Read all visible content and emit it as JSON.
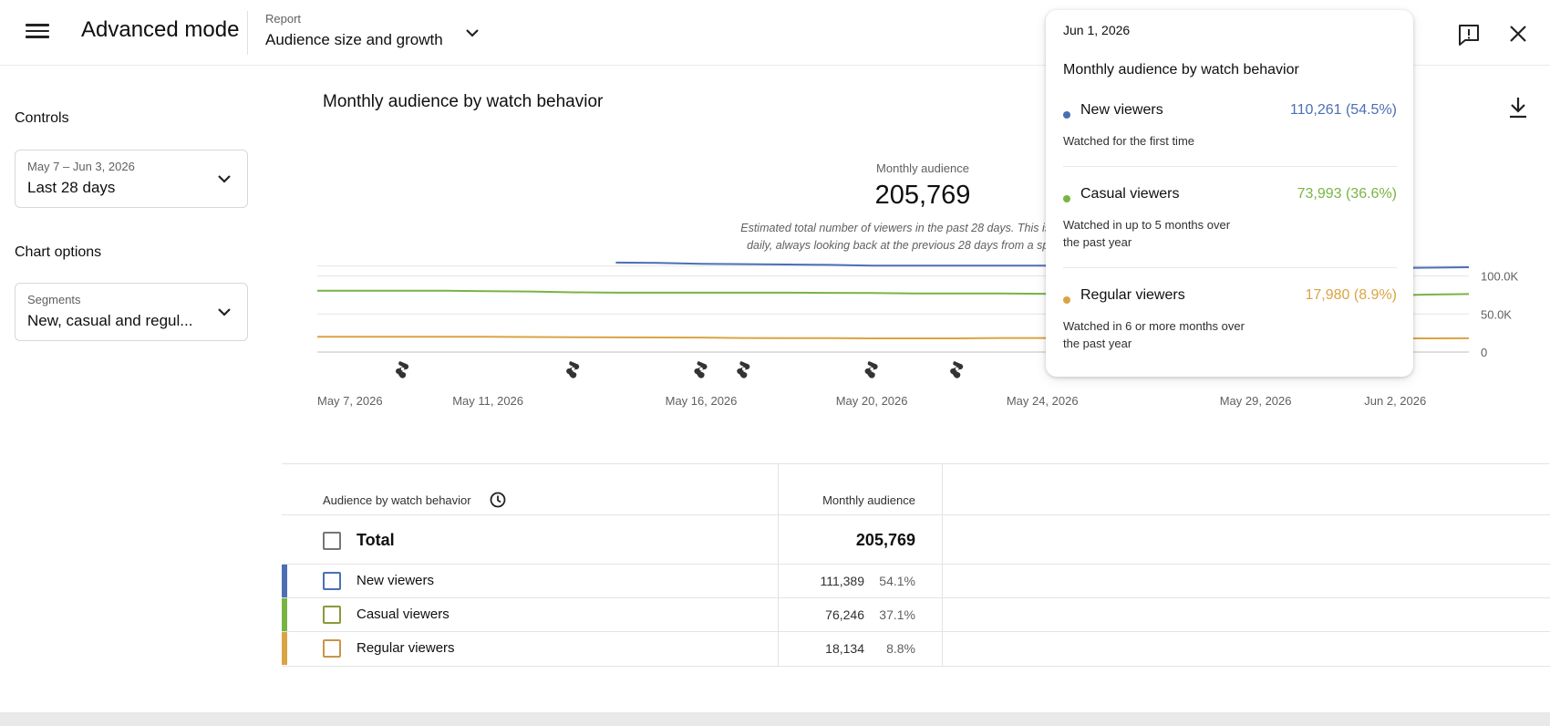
{
  "header": {
    "title": "Advanced mode",
    "report_label": "Report",
    "report_value": "Audience size and growth"
  },
  "sidebar": {
    "controls_heading": "Controls",
    "date_range": {
      "label": "May 7 – Jun 3, 2026",
      "value": "Last 28 days"
    },
    "chart_options_heading": "Chart options",
    "segments": {
      "label": "Segments",
      "value": "New, casual and regul..."
    }
  },
  "chart": {
    "title": "Monthly audience by watch behavior",
    "metric_label": "Monthly audience",
    "metric_value": "205,769",
    "metric_note": "Estimated total number of viewers in the past 28 days. This is calculated daily, always looking back at the previous 28 days from a specific day."
  },
  "chart_data": {
    "type": "line",
    "x": [
      "May 7, 2026",
      "May 8, 2026",
      "May 9, 2026",
      "May 10, 2026",
      "May 11, 2026",
      "May 12, 2026",
      "May 13, 2026",
      "May 14, 2026",
      "May 15, 2026",
      "May 16, 2026",
      "May 17, 2026",
      "May 18, 2026",
      "May 19, 2026",
      "May 20, 2026",
      "May 21, 2026",
      "May 22, 2026",
      "May 23, 2026",
      "May 24, 2026",
      "May 25, 2026",
      "May 26, 2026",
      "May 27, 2026",
      "May 28, 2026",
      "May 29, 2026",
      "May 30, 2026",
      "May 31, 2026",
      "Jun 1, 2026",
      "Jun 2, 2026",
      "Jun 3, 2026"
    ],
    "x_tick_labels": [
      "May 7, 2026",
      "May 11, 2026",
      "May 16, 2026",
      "May 20, 2026",
      "May 24, 2026",
      "May 29, 2026",
      "Jun 2, 2026"
    ],
    "x_tick_index": [
      0,
      4,
      9,
      13,
      17,
      22,
      26
    ],
    "y_tick_labels": [
      "0",
      "50.0K",
      "100.0K"
    ],
    "y_tick_values": [
      0,
      50000,
      100000
    ],
    "ylim": [
      0,
      115000
    ],
    "series": [
      {
        "name": "New viewers",
        "color": "#4b6fb5",
        "values": [
          null,
          null,
          null,
          null,
          null,
          null,
          null,
          117500,
          117000,
          116000,
          115500,
          115000,
          114500,
          113500,
          113500,
          113500,
          113500,
          113500,
          113000,
          112500,
          112000,
          111500,
          111000,
          110800,
          110500,
          110261,
          110800,
          111389
        ]
      },
      {
        "name": "Casual viewers",
        "color": "#79b443",
        "values": [
          80500,
          80500,
          80500,
          80500,
          80000,
          79500,
          78500,
          78000,
          78000,
          78000,
          78000,
          78000,
          77800,
          77500,
          77000,
          77000,
          77000,
          76500,
          76200,
          76000,
          75500,
          75000,
          74500,
          74300,
          74100,
          73993,
          75500,
          76246
        ]
      },
      {
        "name": "Regular viewers",
        "color": "#d9a443",
        "values": [
          20000,
          20000,
          20000,
          20000,
          20000,
          19800,
          19500,
          19300,
          19200,
          19000,
          18500,
          18300,
          18200,
          18000,
          18000,
          18000,
          18500,
          18500,
          18300,
          18200,
          18100,
          18000,
          18000,
          17990,
          17985,
          17980,
          18000,
          18134
        ]
      }
    ],
    "premiere_markers_index": [
      2,
      6,
      9,
      10,
      13,
      15
    ],
    "hover_index": 25
  },
  "tooltip": {
    "date": "Jun 1, 2026",
    "title": "Monthly audience by watch behavior",
    "rows": [
      {
        "name": "New viewers",
        "value": "110,261 (54.5%)",
        "desc": "Watched for the first time",
        "color": "#4b6fb5"
      },
      {
        "name": "Casual viewers",
        "value": "73,993 (36.6%)",
        "desc": "Watched in up to 5 months over the past year",
        "color": "#79b443"
      },
      {
        "name": "Regular viewers",
        "value": "17,980 (8.9%)",
        "desc": "Watched in 6 or more months over the past year",
        "color": "#d9a443"
      }
    ]
  },
  "table": {
    "col_behavior": "Audience by watch behavior",
    "col_audience": "Monthly audience",
    "total": {
      "name": "Total",
      "value": "205,769"
    },
    "rows": [
      {
        "name": "New viewers",
        "value": "111,389",
        "pct": "54.1%",
        "color": "#4b6fb5"
      },
      {
        "name": "Casual viewers",
        "value": "76,246",
        "pct": "37.1%",
        "color": "#79b443"
      },
      {
        "name": "Regular viewers",
        "value": "18,134",
        "pct": "8.8%",
        "color": "#d9a443"
      }
    ]
  },
  "icons": {
    "menu": "menu-icon",
    "report_dropdown": "chevron-down-icon",
    "feedback": "feedback-icon",
    "close": "close-icon",
    "download": "download-icon",
    "info": "clock-icon",
    "premiere": "premiere-icon"
  }
}
